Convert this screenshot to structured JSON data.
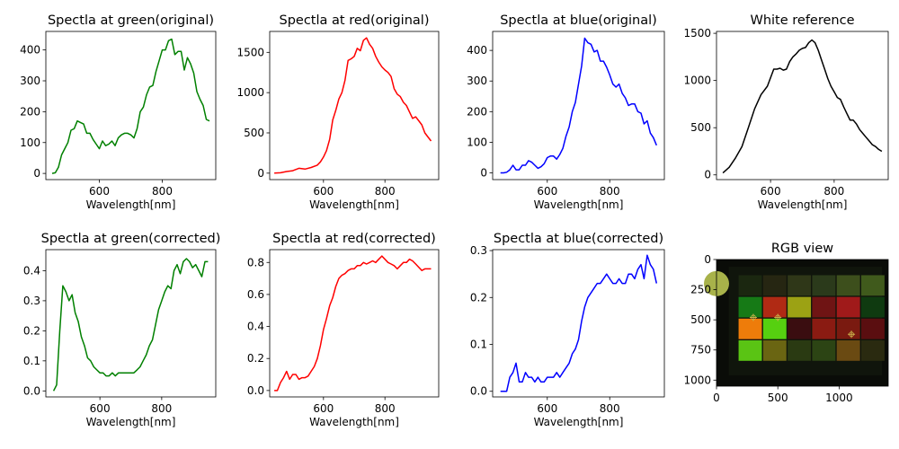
{
  "chart_data": [
    {
      "type": "line",
      "title": "Spectla at green(original)",
      "xlabel": "Wavelength[nm]",
      "ylabel": "",
      "color": "#008000",
      "xlim": [
        430,
        970
      ],
      "ylim": [
        -20,
        460
      ],
      "xticks": [
        600,
        800
      ],
      "yticks": [
        0,
        100,
        200,
        300,
        400
      ],
      "x": [
        450,
        460,
        470,
        480,
        490,
        500,
        510,
        520,
        530,
        540,
        550,
        560,
        570,
        580,
        590,
        600,
        610,
        620,
        630,
        640,
        650,
        660,
        670,
        680,
        690,
        700,
        710,
        720,
        730,
        740,
        750,
        760,
        770,
        780,
        790,
        800,
        810,
        820,
        830,
        840,
        850,
        860,
        870,
        880,
        890,
        900,
        910,
        920,
        930,
        940,
        950
      ],
      "y": [
        0,
        2,
        20,
        60,
        80,
        100,
        140,
        145,
        170,
        165,
        160,
        130,
        130,
        110,
        95,
        80,
        105,
        90,
        95,
        105,
        90,
        115,
        125,
        130,
        130,
        125,
        115,
        145,
        200,
        215,
        255,
        280,
        285,
        330,
        365,
        400,
        400,
        430,
        435,
        385,
        395,
        395,
        335,
        375,
        355,
        325,
        265,
        240,
        220,
        175,
        170
      ]
    },
    {
      "type": "line",
      "title": "Spectla at red(original)",
      "xlabel": "Wavelength[nm]",
      "ylabel": "",
      "color": "#ff0000",
      "xlim": [
        425,
        975
      ],
      "ylim": [
        -80,
        1760
      ],
      "xticks": [
        600,
        800
      ],
      "yticks": [
        0,
        500,
        1000,
        1500
      ],
      "x": [
        440,
        460,
        480,
        500,
        520,
        540,
        560,
        580,
        590,
        600,
        610,
        620,
        630,
        640,
        650,
        660,
        670,
        680,
        690,
        700,
        710,
        720,
        730,
        740,
        750,
        760,
        770,
        780,
        790,
        800,
        810,
        820,
        830,
        840,
        850,
        860,
        870,
        880,
        890,
        900,
        910,
        920,
        930,
        940,
        950
      ],
      "y": [
        0,
        5,
        20,
        30,
        60,
        50,
        70,
        100,
        140,
        200,
        280,
        420,
        660,
        780,
        920,
        1000,
        1150,
        1400,
        1420,
        1450,
        1550,
        1520,
        1650,
        1680,
        1600,
        1550,
        1450,
        1380,
        1320,
        1280,
        1250,
        1200,
        1050,
        980,
        950,
        880,
        840,
        760,
        680,
        700,
        650,
        600,
        500,
        450,
        400
      ]
    },
    {
      "type": "line",
      "title": "Spectla at blue(original)",
      "xlabel": "Wavelength[nm]",
      "ylabel": "",
      "color": "#0000ff",
      "xlim": [
        425,
        975
      ],
      "ylim": [
        -22,
        462
      ],
      "xticks": [
        600,
        800
      ],
      "yticks": [
        0,
        100,
        200,
        300,
        400
      ],
      "x": [
        450,
        460,
        470,
        480,
        490,
        500,
        510,
        520,
        530,
        540,
        550,
        560,
        570,
        580,
        590,
        600,
        610,
        620,
        630,
        640,
        650,
        660,
        670,
        680,
        690,
        700,
        710,
        720,
        730,
        740,
        750,
        760,
        770,
        780,
        790,
        800,
        810,
        820,
        830,
        840,
        850,
        860,
        870,
        880,
        890,
        900,
        910,
        920,
        930,
        940,
        950
      ],
      "y": [
        0,
        0,
        2,
        10,
        25,
        10,
        10,
        25,
        25,
        40,
        35,
        25,
        15,
        20,
        30,
        50,
        55,
        55,
        45,
        60,
        80,
        120,
        150,
        200,
        230,
        290,
        350,
        440,
        425,
        420,
        395,
        400,
        365,
        365,
        345,
        320,
        290,
        280,
        290,
        260,
        245,
        220,
        225,
        225,
        200,
        195,
        160,
        170,
        130,
        115,
        90
      ]
    },
    {
      "type": "line",
      "title": "White reference",
      "xlabel": "Wavelength[nm]",
      "ylabel": "",
      "color": "#000000",
      "xlim": [
        430,
        970
      ],
      "ylim": [
        -50,
        1520
      ],
      "xticks": [
        600,
        800
      ],
      "yticks": [
        0,
        500,
        1000,
        1500
      ],
      "x": [
        450,
        470,
        490,
        510,
        530,
        550,
        570,
        590,
        610,
        620,
        630,
        640,
        650,
        660,
        670,
        680,
        690,
        700,
        710,
        720,
        730,
        740,
        750,
        760,
        770,
        780,
        790,
        800,
        810,
        820,
        830,
        840,
        850,
        860,
        870,
        880,
        890,
        900,
        910,
        920,
        930,
        940,
        950
      ],
      "y": [
        20,
        80,
        180,
        300,
        500,
        700,
        850,
        940,
        1120,
        1120,
        1130,
        1110,
        1120,
        1200,
        1250,
        1280,
        1320,
        1340,
        1350,
        1400,
        1430,
        1400,
        1320,
        1220,
        1120,
        1020,
        940,
        880,
        820,
        800,
        720,
        650,
        580,
        580,
        540,
        480,
        440,
        400,
        360,
        320,
        300,
        270,
        250
      ]
    },
    {
      "type": "line",
      "title": "Spectla at green(corrected)",
      "xlabel": "Wavelength[nm]",
      "ylabel": "",
      "color": "#008000",
      "xlim": [
        425,
        975
      ],
      "ylim": [
        -0.02,
        0.47
      ],
      "xticks": [
        600,
        800
      ],
      "yticks": [
        0.0,
        0.1,
        0.2,
        0.3,
        0.4
      ],
      "ytick_labels": [
        "0.0",
        "0.1",
        "0.2",
        "0.3",
        "0.4"
      ],
      "x": [
        450,
        460,
        470,
        480,
        490,
        500,
        510,
        520,
        530,
        540,
        550,
        560,
        570,
        580,
        590,
        600,
        610,
        620,
        630,
        640,
        650,
        660,
        670,
        680,
        690,
        700,
        710,
        720,
        730,
        740,
        750,
        760,
        770,
        780,
        790,
        800,
        810,
        820,
        830,
        840,
        850,
        860,
        870,
        880,
        890,
        900,
        910,
        920,
        930,
        940,
        950
      ],
      "y": [
        0.0,
        0.02,
        0.2,
        0.35,
        0.33,
        0.3,
        0.32,
        0.26,
        0.23,
        0.18,
        0.15,
        0.11,
        0.1,
        0.08,
        0.07,
        0.06,
        0.06,
        0.05,
        0.05,
        0.06,
        0.05,
        0.06,
        0.06,
        0.06,
        0.06,
        0.06,
        0.06,
        0.07,
        0.08,
        0.1,
        0.12,
        0.15,
        0.17,
        0.22,
        0.27,
        0.3,
        0.33,
        0.35,
        0.34,
        0.4,
        0.42,
        0.39,
        0.43,
        0.44,
        0.43,
        0.41,
        0.42,
        0.4,
        0.38,
        0.43,
        0.43
      ]
    },
    {
      "type": "line",
      "title": "Spectla at red(corrected)",
      "xlabel": "Wavelength[nm]",
      "ylabel": "",
      "color": "#ff0000",
      "xlim": [
        425,
        975
      ],
      "ylim": [
        -0.04,
        0.88
      ],
      "xticks": [
        600,
        800
      ],
      "yticks": [
        0.0,
        0.2,
        0.4,
        0.6,
        0.8
      ],
      "ytick_labels": [
        "0.0",
        "0.2",
        "0.4",
        "0.6",
        "0.8"
      ],
      "x": [
        440,
        450,
        460,
        470,
        480,
        490,
        500,
        510,
        520,
        530,
        540,
        550,
        560,
        570,
        580,
        590,
        600,
        610,
        620,
        630,
        640,
        650,
        660,
        670,
        680,
        690,
        700,
        710,
        720,
        730,
        740,
        750,
        760,
        770,
        780,
        790,
        800,
        810,
        820,
        830,
        840,
        850,
        860,
        870,
        880,
        890,
        900,
        910,
        920,
        930,
        940,
        950
      ],
      "y": [
        0.0,
        0.0,
        0.05,
        0.08,
        0.12,
        0.07,
        0.1,
        0.1,
        0.07,
        0.08,
        0.08,
        0.09,
        0.12,
        0.15,
        0.2,
        0.28,
        0.38,
        0.45,
        0.53,
        0.58,
        0.65,
        0.7,
        0.72,
        0.73,
        0.75,
        0.76,
        0.76,
        0.78,
        0.78,
        0.8,
        0.79,
        0.8,
        0.81,
        0.8,
        0.82,
        0.84,
        0.82,
        0.8,
        0.79,
        0.78,
        0.76,
        0.78,
        0.8,
        0.8,
        0.82,
        0.81,
        0.79,
        0.77,
        0.75,
        0.76,
        0.76,
        0.76
      ]
    },
    {
      "type": "line",
      "title": "Spectla at blue(corrected)",
      "xlabel": "Wavelength[nm]",
      "ylabel": "",
      "color": "#0000ff",
      "xlim": [
        425,
        975
      ],
      "ylim": [
        -0.012,
        0.302
      ],
      "xticks": [
        600,
        800
      ],
      "yticks": [
        0.0,
        0.1,
        0.2,
        0.3
      ],
      "ytick_labels": [
        "0.0",
        "0.1",
        "0.2",
        "0.3"
      ],
      "x": [
        450,
        460,
        470,
        480,
        490,
        500,
        510,
        520,
        530,
        540,
        550,
        560,
        570,
        580,
        590,
        600,
        610,
        620,
        630,
        640,
        650,
        660,
        670,
        680,
        690,
        700,
        710,
        720,
        730,
        740,
        750,
        760,
        770,
        780,
        790,
        800,
        810,
        820,
        830,
        840,
        850,
        860,
        870,
        880,
        890,
        900,
        910,
        920,
        930,
        940,
        950
      ],
      "y": [
        0.0,
        0.0,
        0.0,
        0.03,
        0.04,
        0.06,
        0.02,
        0.02,
        0.04,
        0.03,
        0.03,
        0.02,
        0.03,
        0.02,
        0.02,
        0.03,
        0.03,
        0.03,
        0.04,
        0.03,
        0.04,
        0.05,
        0.06,
        0.08,
        0.09,
        0.11,
        0.15,
        0.18,
        0.2,
        0.21,
        0.22,
        0.23,
        0.23,
        0.24,
        0.25,
        0.24,
        0.23,
        0.23,
        0.24,
        0.23,
        0.23,
        0.25,
        0.25,
        0.24,
        0.26,
        0.27,
        0.24,
        0.29,
        0.27,
        0.26,
        0.23
      ]
    },
    {
      "type": "image",
      "title": "RGB view",
      "xlim": [
        0,
        1400
      ],
      "ylim": [
        1050,
        0
      ],
      "xticks": [
        0,
        500,
        1000
      ],
      "yticks": [
        0,
        250,
        500,
        750,
        1000
      ],
      "swatches": [
        {
          "row": 0,
          "col": 0,
          "color": "#1b2710"
        },
        {
          "row": 0,
          "col": 1,
          "color": "#262612"
        },
        {
          "row": 0,
          "col": 2,
          "color": "#2f3718"
        },
        {
          "row": 0,
          "col": 3,
          "color": "#2b3a1b"
        },
        {
          "row": 0,
          "col": 4,
          "color": "#3d4f1c"
        },
        {
          "row": 0,
          "col": 5,
          "color": "#405a1c"
        },
        {
          "row": 1,
          "col": 0,
          "color": "#167a16"
        },
        {
          "row": 1,
          "col": 1,
          "color": "#b02a14"
        },
        {
          "row": 1,
          "col": 2,
          "color": "#9ca214"
        },
        {
          "row": 1,
          "col": 3,
          "color": "#6f1414"
        },
        {
          "row": 1,
          "col": 4,
          "color": "#a01a1a"
        },
        {
          "row": 1,
          "col": 5,
          "color": "#0f3a10"
        },
        {
          "row": 2,
          "col": 0,
          "color": "#ee7c0a"
        },
        {
          "row": 2,
          "col": 1,
          "color": "#56d010"
        },
        {
          "row": 2,
          "col": 2,
          "color": "#3a0d10"
        },
        {
          "row": 2,
          "col": 3,
          "color": "#8a1b12"
        },
        {
          "row": 2,
          "col": 4,
          "color": "#7a1a10"
        },
        {
          "row": 2,
          "col": 5,
          "color": "#5a0e10"
        },
        {
          "row": 3,
          "col": 0,
          "color": "#5ac414"
        },
        {
          "row": 3,
          "col": 1,
          "color": "#6a6512"
        },
        {
          "row": 3,
          "col": 2,
          "color": "#2a3a12"
        },
        {
          "row": 3,
          "col": 3,
          "color": "#2c4414"
        },
        {
          "row": 3,
          "col": 4,
          "color": "#6a4a12"
        },
        {
          "row": 3,
          "col": 5,
          "color": "#2a2a10"
        }
      ],
      "markers": [
        [
          300,
          480
        ],
        [
          500,
          480
        ],
        [
          1100,
          620
        ]
      ]
    }
  ]
}
